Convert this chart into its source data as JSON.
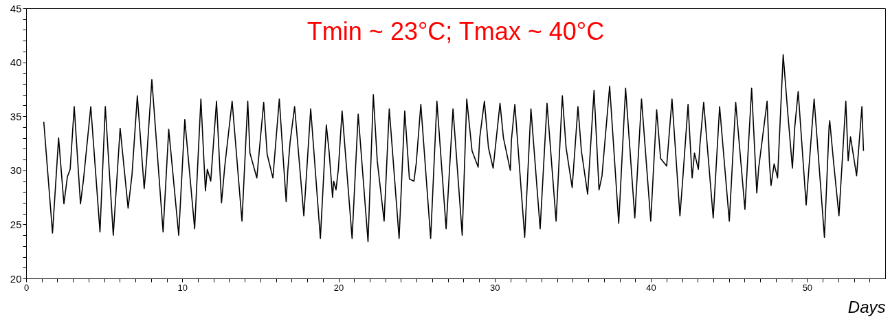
{
  "chart_data": {
    "type": "line",
    "xlabel": "Days",
    "annotations": [
      "Tmin ~ 23°C; Tmax ~ 40°C"
    ],
    "xlim": [
      0,
      55
    ],
    "ylim": [
      20,
      45
    ],
    "xticks": [
      0,
      {
        "value": 1,
        "label": null
      },
      {
        "value": 2,
        "label": null
      },
      {
        "value": 3,
        "label": null
      },
      {
        "value": 4,
        "label": null
      },
      {
        "value": 5,
        "label": null
      },
      {
        "value": 6,
        "label": null
      },
      {
        "value": 7,
        "label": null
      },
      {
        "value": 8,
        "label": null
      },
      {
        "value": 9,
        "label": null
      },
      10,
      {
        "value": 11,
        "label": null
      },
      {
        "value": 12,
        "label": null
      },
      {
        "value": 13,
        "label": null
      },
      {
        "value": 14,
        "label": null
      },
      {
        "value": 15,
        "label": null
      },
      {
        "value": 16,
        "label": null
      },
      {
        "value": 17,
        "label": null
      },
      {
        "value": 18,
        "label": null
      },
      {
        "value": 19,
        "label": null
      },
      20,
      {
        "value": 21,
        "label": null
      },
      {
        "value": 22,
        "label": null
      },
      {
        "value": 23,
        "label": null
      },
      {
        "value": 24,
        "label": null
      },
      {
        "value": 25,
        "label": null
      },
      {
        "value": 26,
        "label": null
      },
      {
        "value": 27,
        "label": null
      },
      {
        "value": 28,
        "label": null
      },
      {
        "value": 29,
        "label": null
      },
      30,
      {
        "value": 31,
        "label": null
      },
      {
        "value": 32,
        "label": null
      },
      {
        "value": 33,
        "label": null
      },
      {
        "value": 34,
        "label": null
      },
      {
        "value": 35,
        "label": null
      },
      {
        "value": 36,
        "label": null
      },
      {
        "value": 37,
        "label": null
      },
      {
        "value": 38,
        "label": null
      },
      {
        "value": 39,
        "label": null
      },
      40,
      {
        "value": 41,
        "label": null
      },
      {
        "value": 42,
        "label": null
      },
      {
        "value": 43,
        "label": null
      },
      {
        "value": 44,
        "label": null
      },
      {
        "value": 45,
        "label": null
      },
      {
        "value": 46,
        "label": null
      },
      {
        "value": 47,
        "label": null
      },
      {
        "value": 48,
        "label": null
      },
      {
        "value": 49,
        "label": null
      },
      50,
      {
        "value": 51,
        "label": null
      },
      {
        "value": 52,
        "label": null
      },
      {
        "value": 53,
        "label": null
      },
      {
        "value": 54,
        "label": null
      }
    ],
    "yticks": [
      20,
      {
        "value": 21,
        "label": null
      },
      {
        "value": 22,
        "label": null
      },
      {
        "value": 23,
        "label": null
      },
      {
        "value": 24,
        "label": null
      },
      25,
      {
        "value": 26,
        "label": null
      },
      {
        "value": 27,
        "label": null
      },
      {
        "value": 28,
        "label": null
      },
      {
        "value": 29,
        "label": null
      },
      30,
      {
        "value": 31,
        "label": null
      },
      {
        "value": 32,
        "label": null
      },
      {
        "value": 33,
        "label": null
      },
      {
        "value": 34,
        "label": null
      },
      35,
      {
        "value": 36,
        "label": null
      },
      {
        "value": 37,
        "label": null
      },
      {
        "value": 38,
        "label": null
      },
      {
        "value": 39,
        "label": null
      },
      40,
      {
        "value": 41,
        "label": null
      },
      {
        "value": 42,
        "label": null
      },
      {
        "value": 43,
        "label": null
      },
      {
        "value": 44,
        "label": null
      },
      45
    ],
    "grid": false,
    "marker": "none",
    "line_style": "solid",
    "series": [
      {
        "color": "#000000",
        "x": [
          1.13,
          1.69,
          2.08,
          2.42,
          2.64,
          2.82,
          3.08,
          3.48,
          3.67,
          4.14,
          4.73,
          5.07,
          5.58,
          6.02,
          6.53,
          6.78,
          7.12,
          7.56,
          7.7,
          8.05,
          8.77,
          9.13,
          9.77,
          10.16,
          10.79,
          11.19,
          11.48,
          11.6,
          11.82,
          12.19,
          12.51,
          12.72,
          13.19,
          13.82,
          14.19,
          14.33,
          14.77,
          15.21,
          15.43,
          15.8,
          16.21,
          16.46,
          16.65,
          16.75,
          16.9,
          17.19,
          17.78,
          18.22,
          18.84,
          19.22,
          19.4,
          19.62,
          19.69,
          19.84,
          19.99,
          20.23,
          20.87,
          21.26,
          21.89,
          22.23,
          22.48,
          22.92,
          23.25,
          23.88,
          24.24,
          24.54,
          24.83,
          24.98,
          25.27,
          25.9,
          26.3,
          26.89,
          27.33,
          27.92,
          28.21,
          28.55,
          28.94,
          29.04,
          29.34,
          29.6,
          29.9,
          30.34,
          30.56,
          31.0,
          31.07,
          31.29,
          31.92,
          32.32,
          32.91,
          33.35,
          33.93,
          34.33,
          34.57,
          34.96,
          35.33,
          35.55,
          35.95,
          36.36,
          36.68,
          36.87,
          37.36,
          37.94,
          38.38,
          38.97,
          39.4,
          39.99,
          40.37,
          40.62,
          41.01,
          41.35,
          41.86,
          42.01,
          42.38,
          42.64,
          42.79,
          43.04,
          43.14,
          43.38,
          43.99,
          44.4,
          45.02,
          45.43,
          46.02,
          46.45,
          46.78,
          46.9,
          47.44,
          47.59,
          47.69,
          47.89,
          48.11,
          48.47,
          48.77,
          49.06,
          49.21,
          49.43,
          49.94,
          50.45,
          51.11,
          51.41,
          51.45,
          51.7,
          52.04,
          52.48,
          52.63,
          52.78,
          53.17,
          53.51,
          53.61
        ],
        "values": [
          34.5,
          24.2,
          33.0,
          26.9,
          29.4,
          30.1,
          35.9,
          26.9,
          29.1,
          35.9,
          24.3,
          35.9,
          24.0,
          33.9,
          26.5,
          29.6,
          36.9,
          28.3,
          30.7,
          38.4,
          24.3,
          33.8,
          24.0,
          34.7,
          24.6,
          36.6,
          28.1,
          30.1,
          29.0,
          36.4,
          27.0,
          30.4,
          36.4,
          25.3,
          36.4,
          31.6,
          29.3,
          36.3,
          31.5,
          29.3,
          36.6,
          31.1,
          27.1,
          29.9,
          32.6,
          35.9,
          25.8,
          35.7,
          23.7,
          34.2,
          31.7,
          27.5,
          29.0,
          28.2,
          30.1,
          35.5,
          23.7,
          35.2,
          23.4,
          37.0,
          30.9,
          25.3,
          35.7,
          23.7,
          35.5,
          29.2,
          29.0,
          30.7,
          36.1,
          23.7,
          36.4,
          24.6,
          35.7,
          24.0,
          36.6,
          31.8,
          30.3,
          33.0,
          36.4,
          32.1,
          30.2,
          36.2,
          33.0,
          30.0,
          32.8,
          36.1,
          23.8,
          35.7,
          24.6,
          36.2,
          25.3,
          36.9,
          32.1,
          28.4,
          35.9,
          31.8,
          27.8,
          37.4,
          28.2,
          29.5,
          37.8,
          25.1,
          37.6,
          25.6,
          36.6,
          25.3,
          35.6,
          31.1,
          30.4,
          36.6,
          25.8,
          28.6,
          36.1,
          29.3,
          31.6,
          30.1,
          32.4,
          36.3,
          25.6,
          35.9,
          25.3,
          36.3,
          26.4,
          37.6,
          27.9,
          30.2,
          36.4,
          30.7,
          28.6,
          30.6,
          29.3,
          40.7,
          35.2,
          30.2,
          34.0,
          37.3,
          26.8,
          36.6,
          23.8,
          34.1,
          34.6,
          30.7,
          25.8,
          36.4,
          30.9,
          33.1,
          29.5,
          35.9,
          31.8
        ]
      }
    ]
  }
}
